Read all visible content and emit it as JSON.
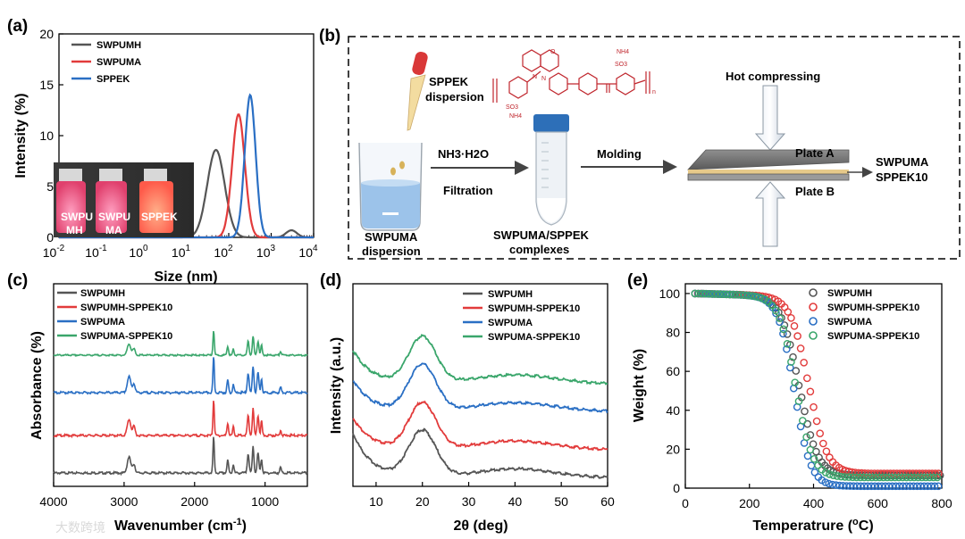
{
  "panels": {
    "a": "(a)",
    "b": "(b)",
    "c": "(c)",
    "d": "(d)",
    "e": "(e)"
  },
  "colors": {
    "black": "#555555",
    "red": "#e23b3b",
    "blue": "#2a6fc4",
    "green": "#3aa66b"
  },
  "watermark": "大数跨境",
  "inset_photo": {
    "labels": [
      "SWPU MH",
      "SWPU MA",
      "SPPEK"
    ],
    "line1": [
      "SWPU",
      "SWPU",
      "SPPEK"
    ],
    "line2": [
      "MH",
      "MA",
      ""
    ]
  },
  "scheme": {
    "sppek_dispersion": "SPPEK dispersion",
    "sppek_line1": "SPPEK",
    "sppek_line2": "dispersion",
    "nh3": "NH3·H2O",
    "filtration": "Filtration",
    "molding": "Molding",
    "hot_compressing": "Hot compressing",
    "plate_a": "Plate A",
    "plate_b": "Plate B",
    "product_line1": "SWPUMA",
    "product_line2": "SPPEK10",
    "dispersion_line1": "SWPUMA",
    "dispersion_line2": "dispersion",
    "complex_line1": "SWPUMA/SPPEK",
    "complex_line2": "complexes",
    "chem_labels": [
      "O",
      "N",
      "N",
      "SO3",
      "NH4",
      "SO3",
      "NH4",
      "n"
    ]
  },
  "chart_data": [
    {
      "panel": "a",
      "type": "line",
      "xscale": "log",
      "xlabel": "Size (nm)",
      "ylabel": "Intensity (%)",
      "xlim": [
        0.01,
        10000
      ],
      "ylim": [
        0,
        20
      ],
      "xticks": [
        "10-2",
        "10-1",
        "100",
        "101",
        "102",
        "103",
        "104"
      ],
      "xtick_base": "10",
      "xtick_exp": [
        "-2",
        "-1",
        "0",
        "1",
        "2",
        "3",
        "4"
      ],
      "yticks": [
        0,
        5,
        10,
        15,
        20
      ],
      "series": [
        {
          "name": "SWPUMH",
          "color": "#555555",
          "peak_x": 50,
          "peak_y": 8.6,
          "width_log": 0.29,
          "secondary_peak_x": 3000,
          "secondary_peak_y": 0.7
        },
        {
          "name": "SWPUMA",
          "color": "#e23b3b",
          "peak_x": 170,
          "peak_y": 12.1,
          "width_log": 0.21
        },
        {
          "name": "SPPEK",
          "color": "#2a6fc4",
          "peak_x": 320,
          "peak_y": 14.0,
          "width_log": 0.18
        }
      ]
    },
    {
      "panel": "c",
      "type": "line",
      "xlabel": "Wavenumber (cm-1)",
      "xlabel_main": "Wavenumber (cm",
      "xlabel_sup": "-1",
      "xlabel_end": ")",
      "ylabel": "Absorbance (%)",
      "xlim": [
        4000,
        400
      ],
      "xticks": [
        4000,
        3000,
        2000,
        1000
      ],
      "series": [
        {
          "name": "SWPUMH",
          "color": "#555555",
          "offset": 0
        },
        {
          "name": "SWPUMH-SPPEK10",
          "color": "#e23b3b",
          "offset": 1
        },
        {
          "name": "SWPUMA",
          "color": "#2a6fc4",
          "offset": 2
        },
        {
          "name": "SWPUMA-SPPEK10",
          "color": "#3aa66b",
          "offset": 3
        }
      ],
      "peaks_cm1": [
        2930,
        2860,
        1730,
        1530,
        1450,
        1240,
        1170,
        1100,
        1050,
        780
      ]
    },
    {
      "panel": "d",
      "type": "line",
      "xlabel": "2θ (deg)",
      "ylabel": "Intensity (a.u.)",
      "xlim": [
        5,
        60
      ],
      "xticks": [
        10,
        20,
        30,
        40,
        50,
        60
      ],
      "peak_2theta": 20,
      "series": [
        {
          "name": "SWPUMH",
          "color": "#555555",
          "offset": 0
        },
        {
          "name": "SWPUMH-SPPEK10",
          "color": "#e23b3b",
          "offset": 1
        },
        {
          "name": "SWPUMA",
          "color": "#2a6fc4",
          "offset": 2
        },
        {
          "name": "SWPUMA-SPPEK10",
          "color": "#3aa66b",
          "offset": 3
        }
      ]
    },
    {
      "panel": "e",
      "type": "scatter",
      "xlabel": "Temperatrure (oC)",
      "xlabel_main": "Temperatrure (",
      "xlabel_sup": "o",
      "xlabel_end": "C)",
      "ylabel": "Weight (%)",
      "xlim": [
        0,
        800
      ],
      "ylim": [
        0,
        105
      ],
      "xticks": [
        0,
        200,
        400,
        600,
        800
      ],
      "yticks": [
        0,
        20,
        40,
        60,
        80,
        100
      ],
      "series": [
        {
          "name": "SWPUMH",
          "color": "#555555",
          "t50": 355,
          "width": 28,
          "residue": 6.5
        },
        {
          "name": "SWPUMH-SPPEK10",
          "color": "#e23b3b",
          "t50": 385,
          "width": 28,
          "residue": 7.5
        },
        {
          "name": "SWPUMA",
          "color": "#2a6fc4",
          "t50": 340,
          "width": 25,
          "residue": 1.0
        },
        {
          "name": "SWPUMA-SPPEK10",
          "color": "#3aa66b",
          "t50": 345,
          "width": 26,
          "residue": 5.5
        }
      ]
    }
  ]
}
